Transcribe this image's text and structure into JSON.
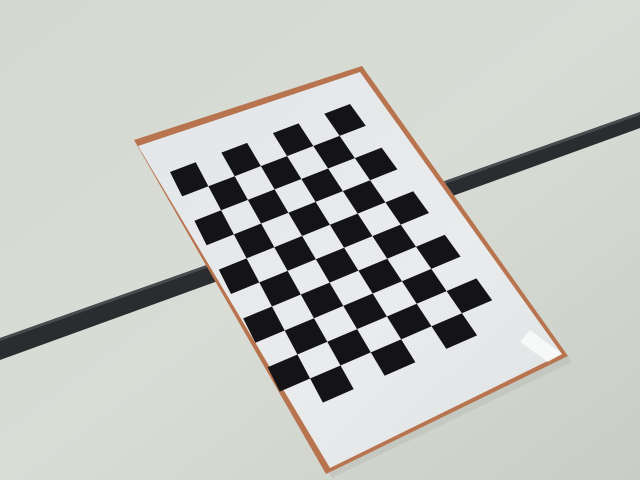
{
  "scene": {
    "description_label": "",
    "checkerboard": {
      "rows": 10,
      "cols": 7,
      "first_square_dark": true
    },
    "colors": {
      "surface_light": "#d7dbd3",
      "surface_mid": "#c9cfc7",
      "surface_shadow": "#bfc5bd",
      "board_face": "#e6e8ea",
      "board_edge_copper": "#b8744e",
      "square_dark": "#141416",
      "rod": "#2b2c30",
      "rod_highlight": "#4a4b50"
    }
  }
}
